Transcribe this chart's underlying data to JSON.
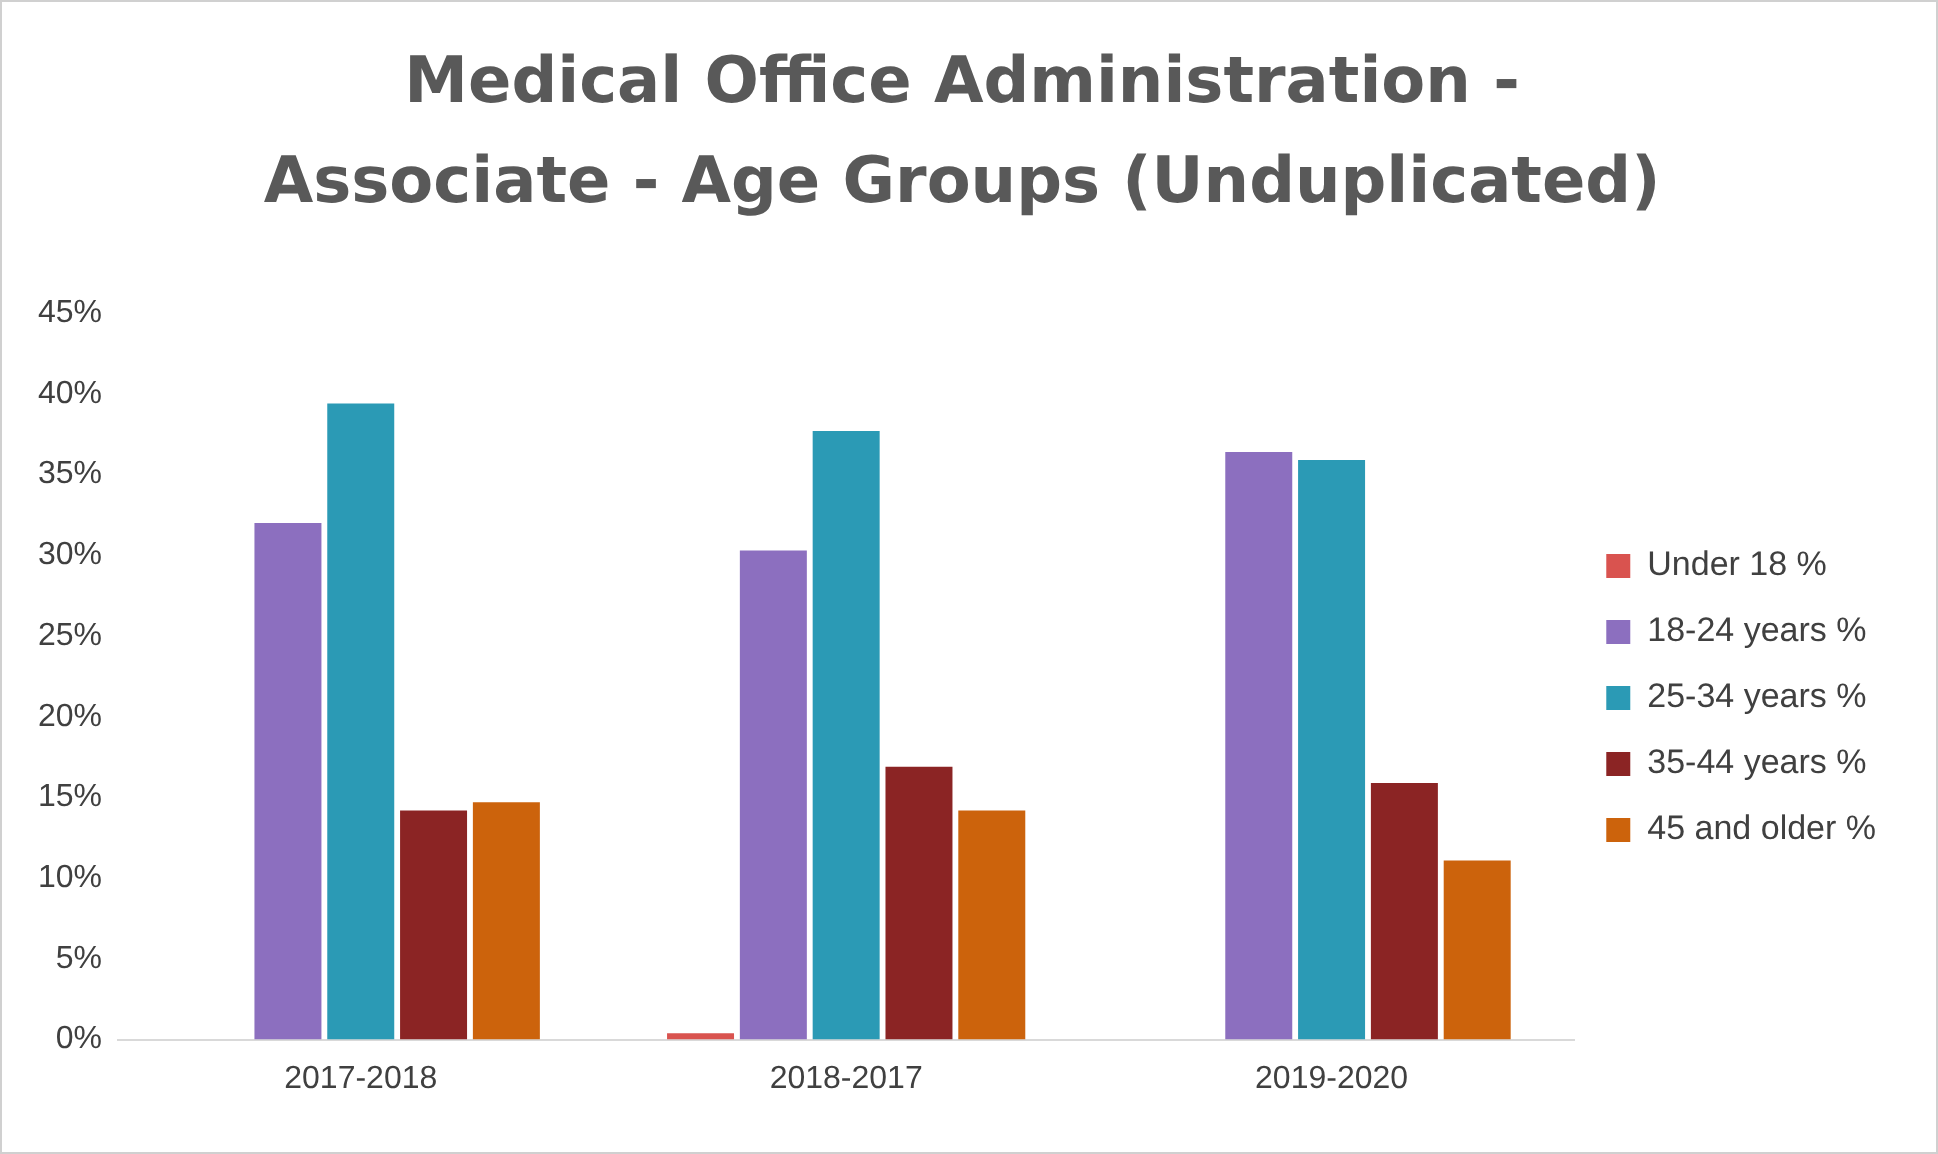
{
  "chart_data": {
    "type": "bar",
    "title": "Medical Office Administration - Associate - Age Groups (Unduplicated)",
    "categories": [
      "2017-2018",
      "2018-2017",
      "2019-2020"
    ],
    "series": [
      {
        "name": "Under 18 %",
        "color": "#d9534f",
        "values": [
          0,
          0.4,
          0
        ]
      },
      {
        "name": "18-24 years %",
        "color": "#8c6fbf",
        "values": [
          32,
          30.3,
          36.4
        ]
      },
      {
        "name": "25-34 years %",
        "color": "#2b9ab5",
        "values": [
          39.4,
          37.7,
          35.9
        ]
      },
      {
        "name": "35-44 years %",
        "color": "#8b2424",
        "values": [
          14.2,
          16.9,
          15.9
        ]
      },
      {
        "name": "45 and older %",
        "color": "#cc630c",
        "values": [
          14.7,
          14.2,
          11.1
        ]
      }
    ],
    "ylim": [
      0,
      45
    ],
    "yticks": [
      {
        "value": 0,
        "label": "0%"
      },
      {
        "value": 5,
        "label": "5%"
      },
      {
        "value": 10,
        "label": "10%"
      },
      {
        "value": 15,
        "label": "15%"
      },
      {
        "value": 20,
        "label": "20%"
      },
      {
        "value": 25,
        "label": "25%"
      },
      {
        "value": 30,
        "label": "30%"
      },
      {
        "value": 35,
        "label": "35%"
      },
      {
        "value": 40,
        "label": "40%"
      },
      {
        "value": 45,
        "label": "45%"
      }
    ],
    "grid": false,
    "legend": "right"
  }
}
